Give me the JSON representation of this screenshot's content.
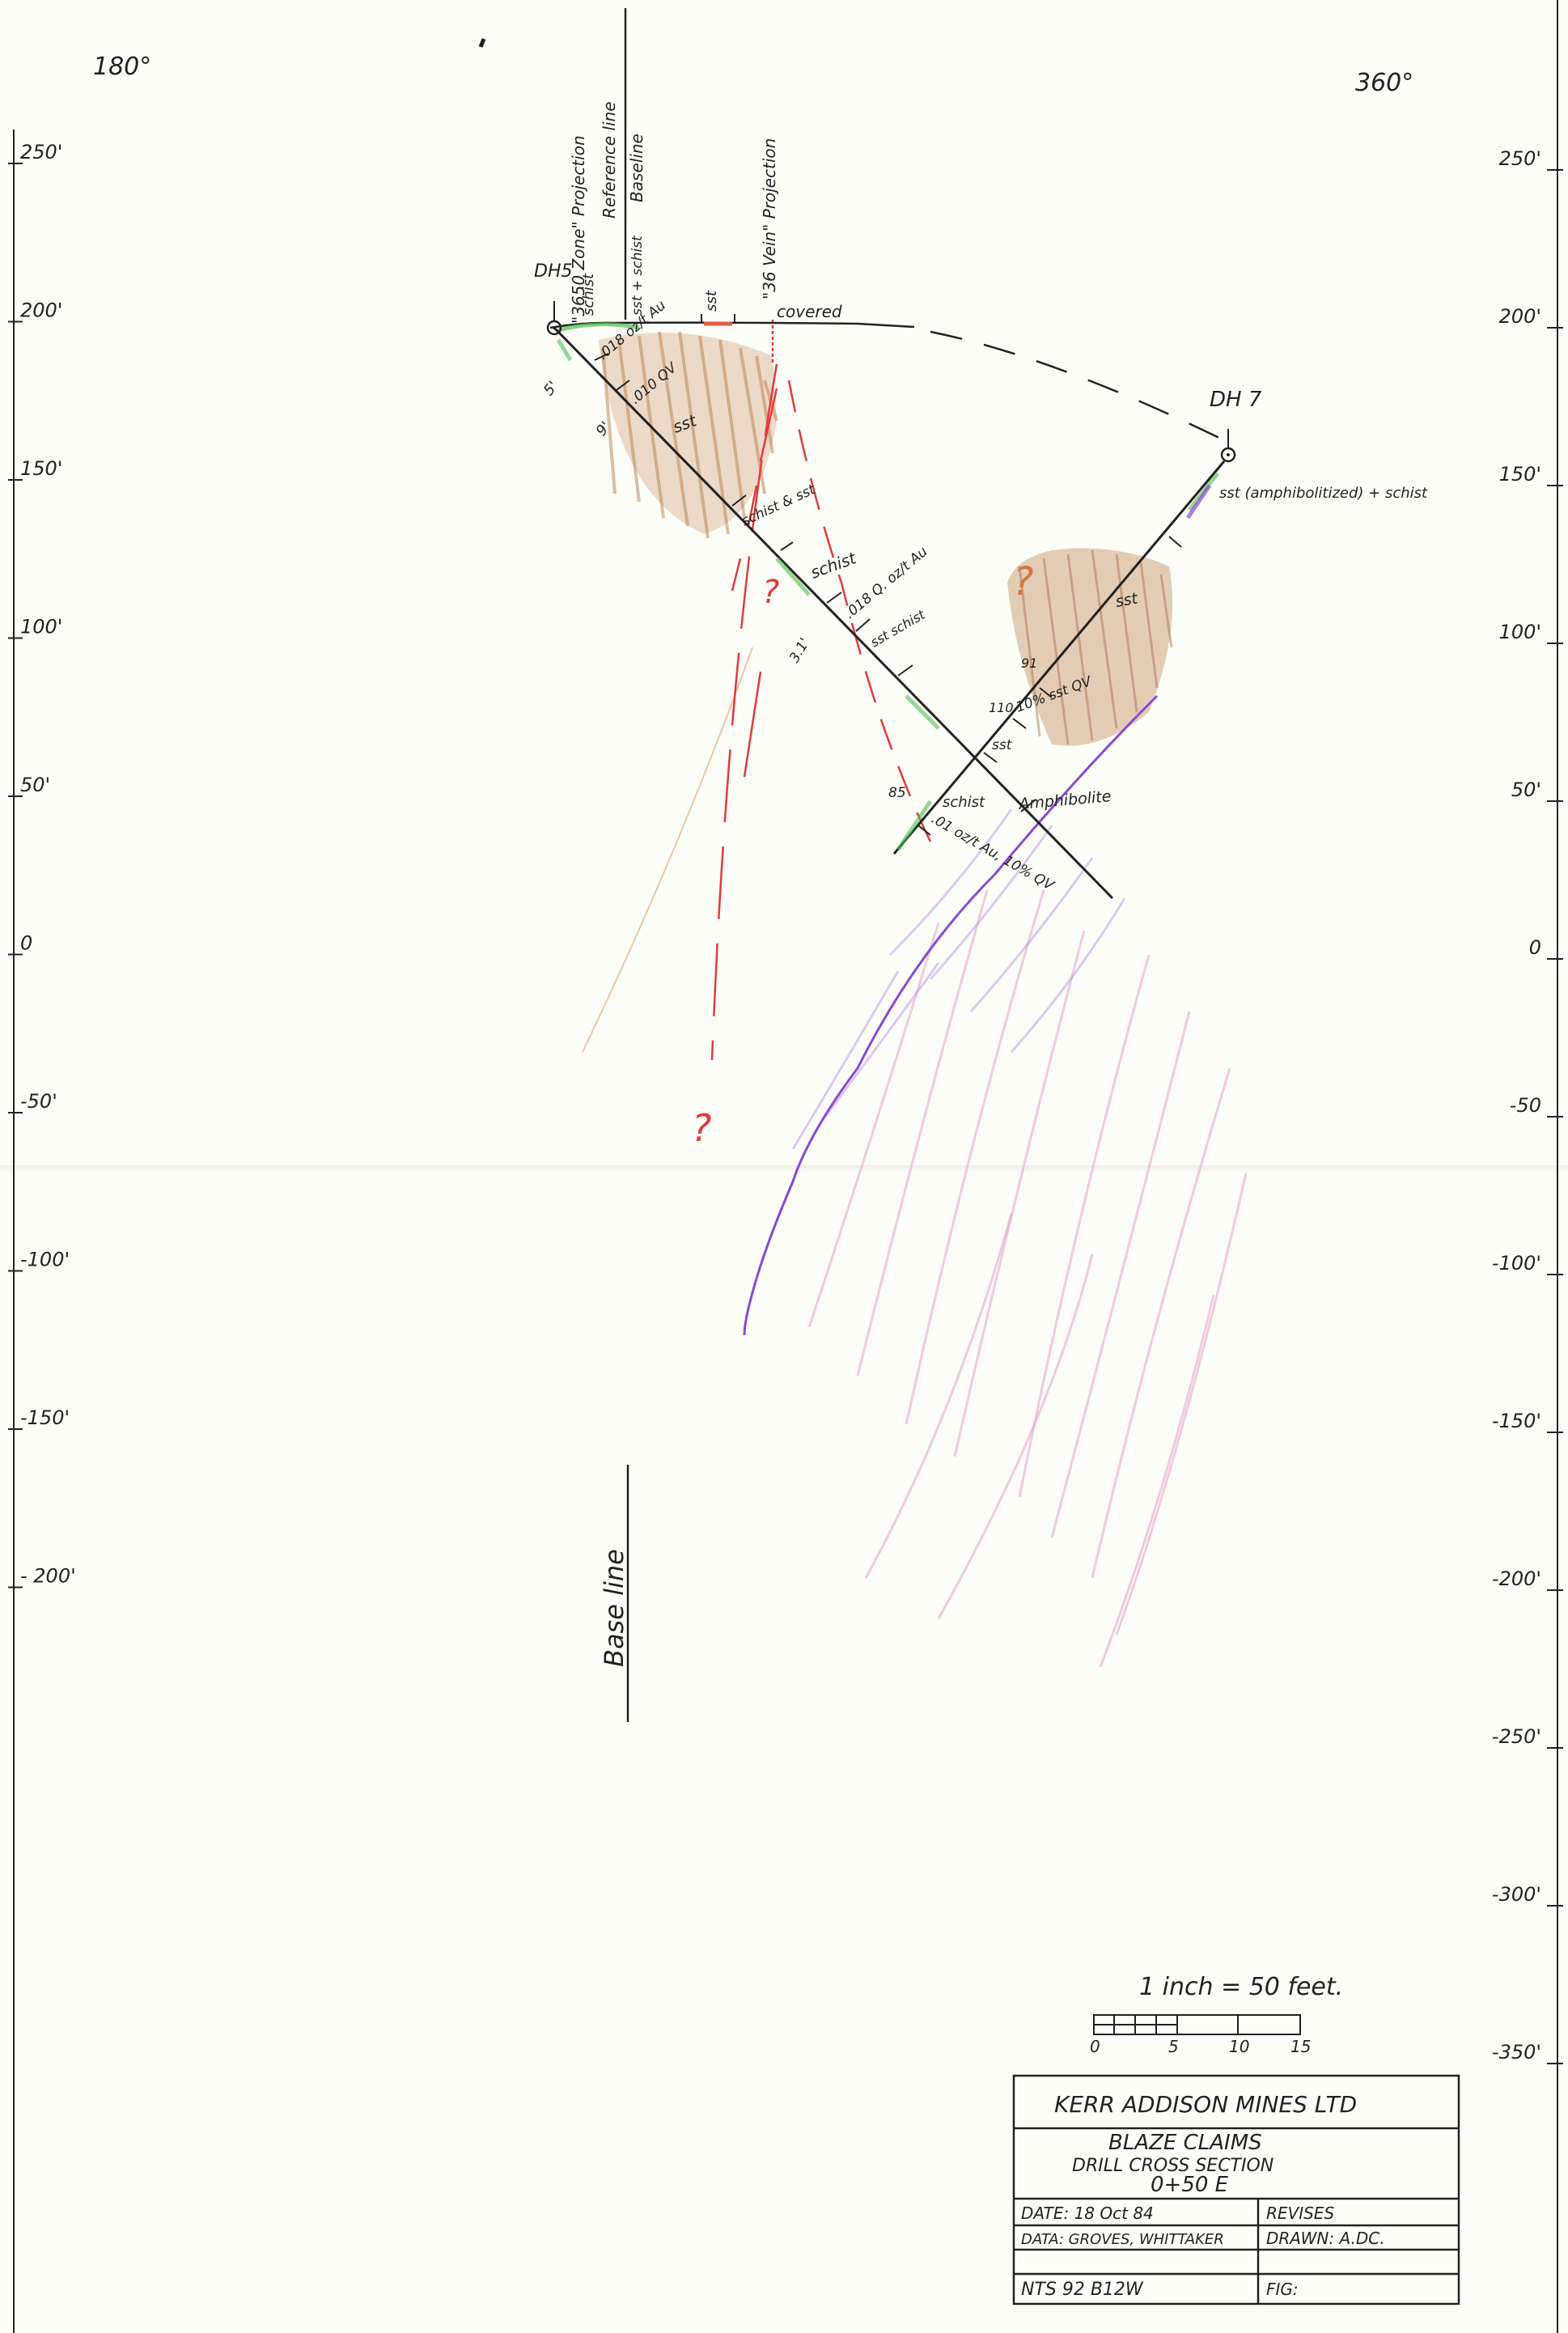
{
  "bearings": {
    "left": "180°",
    "right": "360°"
  },
  "elev_left": [
    "250'",
    "200'",
    "150'",
    "100'",
    "50'",
    "0",
    "-50'",
    "-100'",
    "-150'",
    "- 200'"
  ],
  "elev_right": [
    "250'",
    "200'",
    "150'",
    "100'",
    "50'",
    "0",
    "-50",
    "-100'",
    "-150'",
    "-200'",
    "-250'",
    "-300'",
    "-350'"
  ],
  "ref_labels": {
    "zone": "\"3650 Zone\" Projection",
    "reference": "Reference line",
    "baseline": "Baseline",
    "vein": "\"36 Vein\" Projection",
    "baseline_lower": "Base line"
  },
  "holes": {
    "dh5": "DH5",
    "dh7": "DH 7"
  },
  "surface": {
    "covered": "covered",
    "schist": "schist",
    "sst_schist": "sst + schist",
    "sst": "sst"
  },
  "dh5_notes": {
    "depth5": "5'",
    "depth9": "9'",
    "assay1": ".018 oz/t Au",
    "qv1": ".010 QV",
    "sst": "sst",
    "schist_sst": "schist & sst",
    "schist": "schist",
    "assay2": ".018 Q. oz/t Au",
    "sst_schist": "sst schist",
    "depth31": "3.1'",
    "amphibolite": "Amphibolite"
  },
  "dh7_notes": {
    "top": "sst (amphibolitized) + schist",
    "sst": "sst",
    "d91": "91",
    "d110": "110",
    "qv": "10% sst QV",
    "sst2": "sst",
    "d85": "85",
    "schist": "schist",
    "assay": ".01 oz/t Au, 10% QV"
  },
  "question_marks": [
    "?",
    "?",
    "?"
  ],
  "scale": {
    "text": "1 inch = 50 feet.",
    "ticks": [
      "0",
      "5",
      "10",
      "15"
    ]
  },
  "title_block": {
    "company": "KERR ADDISON MINES LTD",
    "project": "BLAZE CLAIMS",
    "section_title": "DRILL CROSS SECTION",
    "section_no": "0+50 E",
    "date": "DATE: 18 Oct 84",
    "revises": "REVISES",
    "data": "DATA: GROVES, WHITTAKER",
    "drawn": "DRAWN: A.DC.",
    "nts": "NTS 92 B12W",
    "fig": "FIG:"
  },
  "colors": {
    "ink": "#222222",
    "sandstone": "#b2703c",
    "vein_red": "#e23a3a",
    "amphibolite": "#8a48d6",
    "green": "#4cbf4c",
    "pink": "#e7a0c4",
    "paper": "#fdfdf8"
  }
}
